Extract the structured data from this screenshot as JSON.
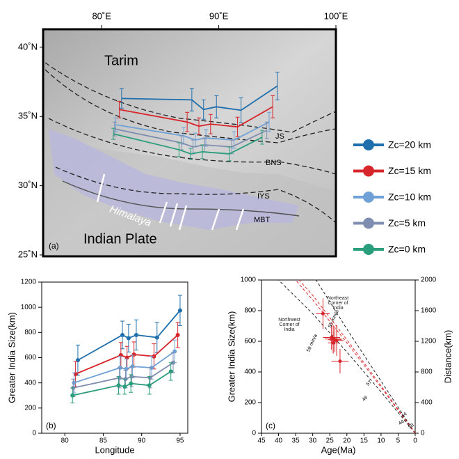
{
  "chart_data": [
    {
      "type": "line",
      "panel_label": "(a)",
      "xlim": [
        75,
        100
      ],
      "ylim": [
        24.9,
        41.3
      ],
      "xticks": [
        {
          "value": 80,
          "label": "80˚E"
        },
        {
          "value": 90,
          "label": "90˚E"
        },
        {
          "value": 100,
          "label": "100˚E"
        }
      ],
      "yticks": [
        {
          "value": 25,
          "label": "25˚N"
        },
        {
          "value": 30,
          "label": "30˚N"
        },
        {
          "value": 35,
          "label": "35˚N"
        },
        {
          "value": 40,
          "label": "40˚N"
        }
      ],
      "annotations": [
        "Tarim",
        "Indian Plate",
        "Himalaya",
        "JS",
        "BNS",
        "IYS",
        "MBT"
      ],
      "series": [
        {
          "name": "Zc=20 km",
          "color": "#1f6fad",
          "x": [
            81.7,
            87.7,
            88.7,
            89.8,
            91.9,
            95.0
          ],
          "values": [
            36.3,
            36.2,
            35.5,
            35.7,
            35.45,
            37.2
          ],
          "errors": [
            0.7,
            0.8,
            0.7,
            0.8,
            0.9,
            1.0
          ]
        },
        {
          "name": "Zc=15 km",
          "color": "#d7262b",
          "x": [
            81.5,
            87.3,
            88.3,
            89.3,
            91.6,
            94.6
          ],
          "values": [
            35.5,
            34.6,
            34.3,
            34.45,
            34.25,
            35.7
          ],
          "errors": [
            0.6,
            0.7,
            0.6,
            0.7,
            0.7,
            0.8
          ]
        },
        {
          "name": "Zc=10 km",
          "color": "#6fa1d6",
          "x": [
            81.2,
            87.0,
            88.0,
            88.9,
            91.3,
            94.3
          ],
          "values": [
            34.4,
            33.6,
            33.3,
            33.45,
            33.3,
            34.6
          ],
          "errors": [
            0.5,
            0.6,
            0.5,
            0.6,
            0.6,
            0.7
          ]
        },
        {
          "name": "Zc=5 km",
          "color": "#7f8db0",
          "x": [
            81.1,
            86.8,
            87.8,
            88.8,
            91.1,
            94.1
          ],
          "values": [
            34.1,
            33.1,
            32.8,
            32.95,
            32.8,
            34.0
          ],
          "errors": [
            0.5,
            0.5,
            0.5,
            0.5,
            0.5,
            0.6
          ]
        },
        {
          "name": "Zc=0 km",
          "color": "#2a9d7c",
          "x": [
            81.0,
            86.6,
            87.6,
            88.6,
            90.9,
            93.7
          ],
          "values": [
            33.75,
            32.6,
            32.3,
            32.45,
            32.3,
            33.5
          ],
          "errors": [
            0.4,
            0.5,
            0.4,
            0.5,
            0.5,
            0.5
          ]
        }
      ]
    },
    {
      "type": "line",
      "panel_label": "(b)",
      "x_label": "Longitude",
      "y_label": "Greater India Size(km)",
      "xlim": [
        77,
        96
      ],
      "ylim": [
        0,
        1200
      ],
      "xticks": [
        80,
        85,
        90,
        95
      ],
      "yticks": [
        0,
        200,
        400,
        600,
        800,
        1000,
        1200
      ],
      "series": [
        {
          "color": "#1f6fad",
          "x": [
            81.7,
            87.5,
            88.3,
            89.3,
            92.0,
            95.0
          ],
          "values": [
            580,
            780,
            755,
            780,
            760,
            975
          ],
          "errors": [
            120,
            110,
            110,
            120,
            120,
            120
          ]
        },
        {
          "color": "#d7262b",
          "x": [
            81.4,
            87.3,
            88.1,
            89.0,
            91.6,
            94.7
          ],
          "values": [
            470,
            620,
            600,
            625,
            610,
            780
          ],
          "errors": [
            100,
            100,
            90,
            100,
            100,
            100
          ]
        },
        {
          "color": "#6fa1d6",
          "x": [
            81.2,
            87.2,
            88.0,
            88.8,
            91.3,
            94.3
          ],
          "values": [
            400,
            520,
            510,
            530,
            520,
            650
          ],
          "errors": [
            80,
            90,
            80,
            90,
            90,
            90
          ]
        },
        {
          "color": "#7f8db0",
          "x": [
            81.1,
            87.1,
            87.9,
            88.7,
            91.1,
            94.1
          ],
          "values": [
            360,
            440,
            430,
            450,
            440,
            560
          ],
          "errors": [
            70,
            80,
            70,
            80,
            80,
            80
          ]
        },
        {
          "color": "#2a9d7c",
          "x": [
            81.0,
            87.0,
            87.8,
            88.6,
            91.0,
            93.8
          ],
          "values": [
            300,
            380,
            370,
            395,
            380,
            490
          ],
          "errors": [
            60,
            70,
            60,
            70,
            70,
            70
          ]
        }
      ]
    },
    {
      "type": "line",
      "panel_label": "(c)",
      "x_label": "Age(Ma)",
      "y_label": "Greater India Size(km)",
      "y2_label": "Distance(km)",
      "xlim": [
        45,
        0
      ],
      "ylim": [
        0,
        1000
      ],
      "y2lim": [
        0,
        2000
      ],
      "xticks": [
        45,
        40,
        35,
        30,
        25,
        20,
        15,
        10,
        5,
        0
      ],
      "yticks": [
        0,
        200,
        400,
        600,
        800,
        1000
      ],
      "y2ticks": [
        0,
        400,
        800,
        1200,
        1600,
        2000
      ],
      "annotations": [
        "Northwest Corner of India",
        "Northeast Corner of India",
        "59 mm/a",
        "85 mm/a",
        "57",
        "46",
        "44",
        "44",
        "58"
      ],
      "lines": [
        {
          "color": "#222222",
          "x": [
            0,
            10,
            20,
            30,
            40
          ],
          "values": [
            0,
            270,
            530,
            780,
            1000
          ]
        },
        {
          "color": "#222222",
          "x": [
            0,
            10,
            20,
            29
          ],
          "values": [
            0,
            340,
            680,
            1000
          ]
        },
        {
          "color": "#d7262b",
          "x": [
            0,
            10,
            20,
            30,
            35
          ],
          "values": [
            0,
            300,
            590,
            870,
            1000
          ]
        },
        {
          "color": "#d7262b",
          "x": [
            0,
            10,
            20,
            30,
            34
          ],
          "values": [
            0,
            310,
            610,
            900,
            1000
          ]
        }
      ],
      "points": {
        "color": "#d7262b",
        "x": [
          27,
          24.5,
          24,
          23.5,
          23,
          24,
          22
        ],
        "xerr": [
          2,
          2.5,
          2.5,
          2,
          2,
          1.5,
          2.5
        ],
        "values": [
          780,
          625,
          615,
          610,
          605,
          590,
          470
        ],
        "yerr": [
          100,
          80,
          90,
          80,
          100,
          70,
          80
        ]
      }
    }
  ]
}
